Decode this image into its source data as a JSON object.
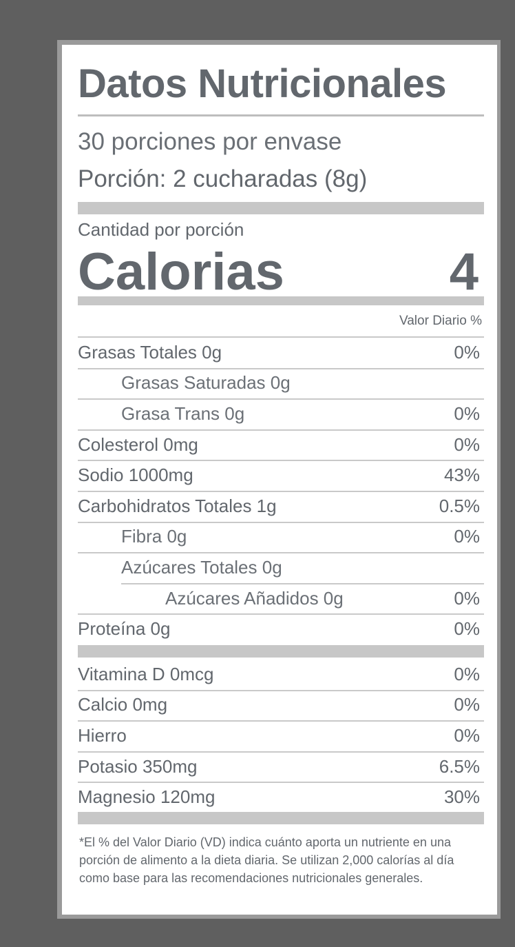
{
  "title": "Datos Nutricionales",
  "servings_per_container": "30 porciones por envase",
  "serving_size": "Porción: 2 cucharadas (8g)",
  "amount_per_serving": "Cantidad por porción",
  "calories": {
    "label": "Calorias",
    "value": "4"
  },
  "daily_value_header": "Valor Diario %",
  "nutrients": [
    {
      "name": "Grasas Totales 0g",
      "dv": "0%",
      "indent": 0
    },
    {
      "name": "Grasas Saturadas 0g",
      "dv": "",
      "indent": 1
    },
    {
      "name": "Grasa Trans 0g",
      "dv": "0%",
      "indent": 1
    },
    {
      "name": "Colesterol 0mg",
      "dv": "0%",
      "indent": 0
    },
    {
      "name": "Sodio 1000mg",
      "dv": "43%",
      "indent": 0
    },
    {
      "name": "Carbohidratos Totales 1g",
      "dv": "0.5%",
      "indent": 0
    },
    {
      "name": "Fibra 0g",
      "dv": "0%",
      "indent": 1
    },
    {
      "name": "Azúcares Totales 0g",
      "dv": "",
      "indent": 1
    },
    {
      "name": "Azúcares Añadidos 0g",
      "dv": "0%",
      "indent": 2
    },
    {
      "name": "Proteína 0g",
      "dv": "0%",
      "indent": 0
    }
  ],
  "vitamins": [
    {
      "name": "Vitamina D 0mcg",
      "dv": "0%"
    },
    {
      "name": "Calcio 0mg",
      "dv": "0%"
    },
    {
      "name": "Hierro",
      "dv": "0%"
    },
    {
      "name": "Potasio 350mg",
      "dv": "6.5%"
    },
    {
      "name": "Magnesio 120mg",
      "dv": "30%"
    }
  ],
  "footnote": "*El % del Valor Diario (VD) indica cuánto aporta un nutriente en una porción de alimento a la dieta diaria. Se utilizan 2,000 calorías al día como base para las recomendaciones nutricionales generales.",
  "colors": {
    "background": "#5f5f5f",
    "text": "#62676d",
    "bars": "#c7c7c7"
  }
}
